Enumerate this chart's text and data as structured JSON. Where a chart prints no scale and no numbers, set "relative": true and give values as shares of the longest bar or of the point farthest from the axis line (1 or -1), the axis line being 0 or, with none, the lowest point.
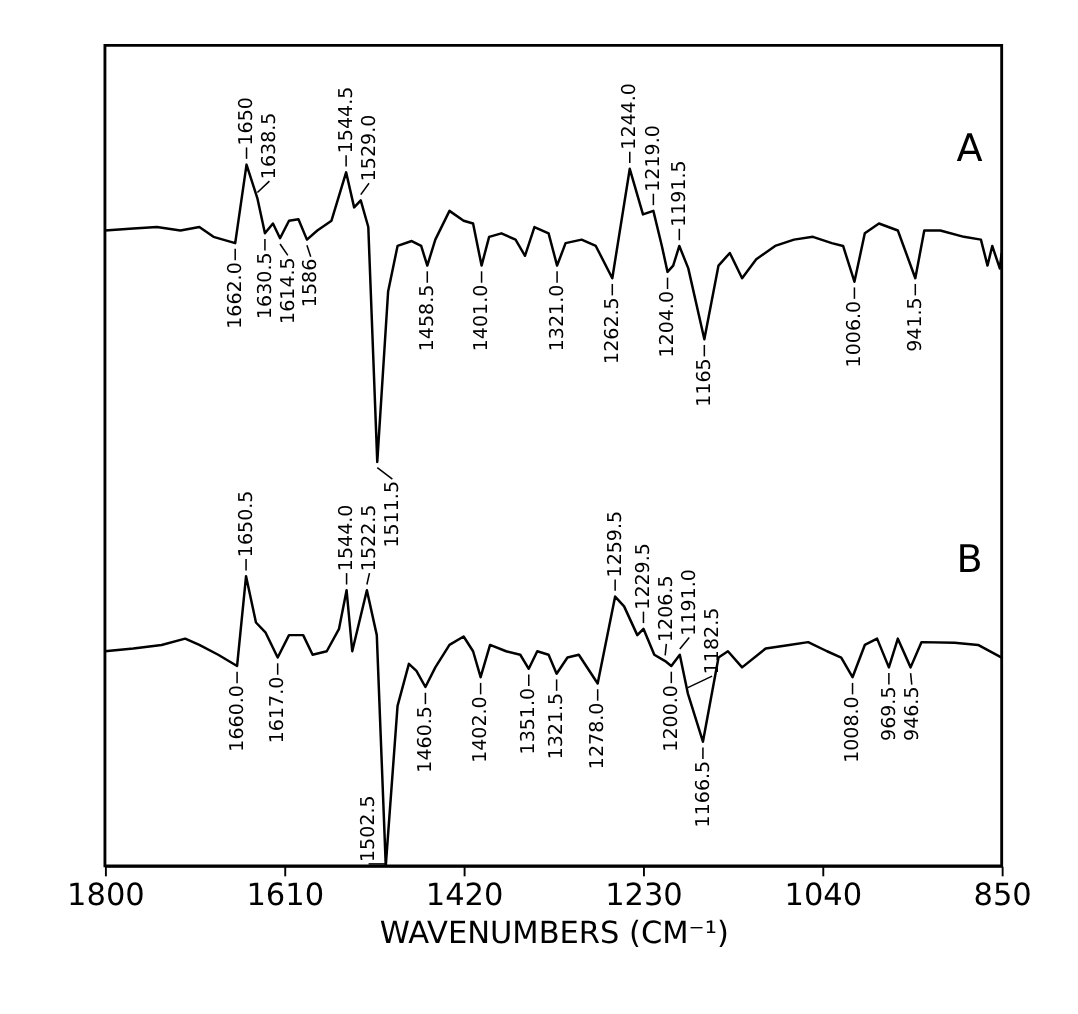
{
  "chart_data": {
    "type": "line",
    "relative": true,
    "xlabel": "WAVENUMBERS (CM⁻¹)",
    "xlim": [
      1800,
      850
    ],
    "xticks": [
      1800,
      1610,
      1420,
      1230,
      1040,
      850
    ],
    "grid": false,
    "series": [
      {
        "name": "A",
        "color": "#000000",
        "x": [
          1800,
          1770,
          1745,
          1720,
          1700,
          1685,
          1662,
          1650,
          1638.5,
          1630.5,
          1622,
          1614.5,
          1605,
          1595,
          1586,
          1575,
          1560,
          1544.5,
          1536,
          1529,
          1521,
          1511.5,
          1500,
          1490,
          1475,
          1465,
          1458.5,
          1450,
          1435,
          1420,
          1410,
          1401,
          1393,
          1380,
          1365,
          1355,
          1345,
          1330,
          1321,
          1312,
          1295,
          1280,
          1262.5,
          1244,
          1230,
          1219,
          1210,
          1204,
          1198,
          1191.5,
          1182,
          1165,
          1150,
          1138,
          1125,
          1110,
          1090,
          1070,
          1050,
          1030,
          1018,
          1006,
          995,
          980,
          970,
          960,
          941.5,
          932,
          915,
          890,
          872,
          865,
          860,
          852,
          850
        ],
        "values": [
          0.906,
          0.909,
          0.911,
          0.906,
          0.911,
          0.897,
          0.888,
          1.0,
          0.952,
          0.902,
          0.916,
          0.895,
          0.92,
          0.922,
          0.893,
          0.906,
          0.92,
          0.989,
          0.939,
          0.949,
          0.911,
          0.576,
          0.819,
          0.884,
          0.891,
          0.884,
          0.856,
          0.893,
          0.934,
          0.92,
          0.916,
          0.856,
          0.897,
          0.902,
          0.893,
          0.87,
          0.911,
          0.902,
          0.856,
          0.888,
          0.893,
          0.884,
          0.838,
          0.994,
          0.929,
          0.934,
          0.884,
          0.847,
          0.856,
          0.884,
          0.852,
          0.751,
          0.856,
          0.874,
          0.838,
          0.865,
          0.884,
          0.893,
          0.897,
          0.888,
          0.884,
          0.833,
          0.902,
          0.916,
          0.911,
          0.906,
          0.838,
          0.906,
          0.906,
          0.897,
          0.893,
          0.856,
          0.884,
          0.852,
          0.874
        ]
      },
      {
        "name": "B",
        "color": "#000000",
        "x": [
          1800,
          1770,
          1740,
          1715,
          1700,
          1680,
          1660,
          1650.5,
          1640,
          1630,
          1617,
          1605,
          1590,
          1580,
          1565,
          1552,
          1544,
          1538,
          1522.5,
          1512,
          1502.5,
          1490,
          1478,
          1470,
          1460.5,
          1450,
          1435,
          1420,
          1410,
          1402,
          1392,
          1375,
          1360,
          1351,
          1342,
          1330,
          1321.5,
          1310,
          1298,
          1278,
          1259.5,
          1250,
          1236,
          1229.5,
          1218,
          1206.5,
          1200,
          1191,
          1182.5,
          1166.5,
          1150,
          1140,
          1125,
          1100,
          1075,
          1055,
          1035,
          1020,
          1008,
          995,
          982,
          969.5,
          960,
          946.5,
          935,
          900,
          875,
          850
        ],
        "values": [
          0.306,
          0.31,
          0.315,
          0.324,
          0.315,
          0.301,
          0.285,
          0.413,
          0.347,
          0.333,
          0.297,
          0.329,
          0.329,
          0.301,
          0.306,
          0.338,
          0.393,
          0.306,
          0.393,
          0.329,
          0,
          0.228,
          0.288,
          0.278,
          0.255,
          0.283,
          0.315,
          0.327,
          0.306,
          0.269,
          0.315,
          0.306,
          0.301,
          0.281,
          0.306,
          0.301,
          0.274,
          0.297,
          0.301,
          0.26,
          0.384,
          0.37,
          0.329,
          0.338,
          0.301,
          0.292,
          0.285,
          0.301,
          0.246,
          0.177,
          0.297,
          0.306,
          0.283,
          0.31,
          0.315,
          0.319,
          0.306,
          0.297,
          0.269,
          0.315,
          0.324,
          0.283,
          0.324,
          0.283,
          0.319,
          0.318,
          0.315,
          0.297
        ]
      }
    ],
    "annotations": [
      {
        "text": "1662.0",
        "x": 1662,
        "y": 0.888
      },
      {
        "text": "1650",
        "x": 1650,
        "y": 1.0
      },
      {
        "text": "1638.5",
        "x": 1638.5,
        "y": 0.952
      },
      {
        "text": "1630.5",
        "x": 1630.5,
        "y": 0.902
      },
      {
        "text": "1614.5",
        "x": 1614.5,
        "y": 0.895
      },
      {
        "text": "1586",
        "x": 1586,
        "y": 0.893
      },
      {
        "text": "1544.5",
        "x": 1544.5,
        "y": 0.989
      },
      {
        "text": "1529.0",
        "x": 1529,
        "y": 0.949
      },
      {
        "text": "1511.5",
        "x": 1511.5,
        "y": 0.576
      },
      {
        "text": "1458.5",
        "x": 1458.5,
        "y": 0.856
      },
      {
        "text": "1401.0",
        "x": 1401,
        "y": 0.856
      },
      {
        "text": "1321.0",
        "x": 1321,
        "y": 0.856
      },
      {
        "text": "1262.5",
        "x": 1262.5,
        "y": 0.838
      },
      {
        "text": "1244.0",
        "x": 1244,
        "y": 0.994
      },
      {
        "text": "1219.0",
        "x": 1219,
        "y": 0.934
      },
      {
        "text": "1204.0",
        "x": 1204,
        "y": 0.847
      },
      {
        "text": "1191.5",
        "x": 1191.5,
        "y": 0.884
      },
      {
        "text": "1165",
        "x": 1165,
        "y": 0.751
      },
      {
        "text": "1006.0",
        "x": 1006,
        "y": 0.833
      },
      {
        "text": "941.5",
        "x": 941.5,
        "y": 0.838
      },
      {
        "text": "1660.0",
        "x": 1660,
        "y": 0.285
      },
      {
        "text": "1650.5",
        "x": 1650.5,
        "y": 0.413
      },
      {
        "text": "1617.0",
        "x": 1617,
        "y": 0.297
      },
      {
        "text": "1544.0",
        "x": 1544,
        "y": 0.393
      },
      {
        "text": "1522.5",
        "x": 1522.5,
        "y": 0.393
      },
      {
        "text": "1502.5",
        "x": 1502.5,
        "y": 0
      },
      {
        "text": "1460.5",
        "x": 1460.5,
        "y": 0.255
      },
      {
        "text": "1402.0",
        "x": 1402,
        "y": 0.269
      },
      {
        "text": "1351.0",
        "x": 1351,
        "y": 0.281
      },
      {
        "text": "1321.5",
        "x": 1321.5,
        "y": 0.274
      },
      {
        "text": "1278.0",
        "x": 1278,
        "y": 0.26
      },
      {
        "text": "1259.5",
        "x": 1259.5,
        "y": 0.384
      },
      {
        "text": "1229.5",
        "x": 1229.5,
        "y": 0.338
      },
      {
        "text": "1206.5",
        "x": 1206.5,
        "y": 0.292
      },
      {
        "text": "1200.0",
        "x": 1200,
        "y": 0.285
      },
      {
        "text": "1191.0",
        "x": 1191,
        "y": 0.301
      },
      {
        "text": "1182.5",
        "x": 1182.5,
        "y": 0.246
      },
      {
        "text": "1166.5",
        "x": 1166.5,
        "y": 0.177
      },
      {
        "text": "1008.0",
        "x": 1008,
        "y": 0.269
      },
      {
        "text": "969.5",
        "x": 969.5,
        "y": 0.283
      },
      {
        "text": "946.5",
        "x": 946.5,
        "y": 0.283
      }
    ]
  }
}
